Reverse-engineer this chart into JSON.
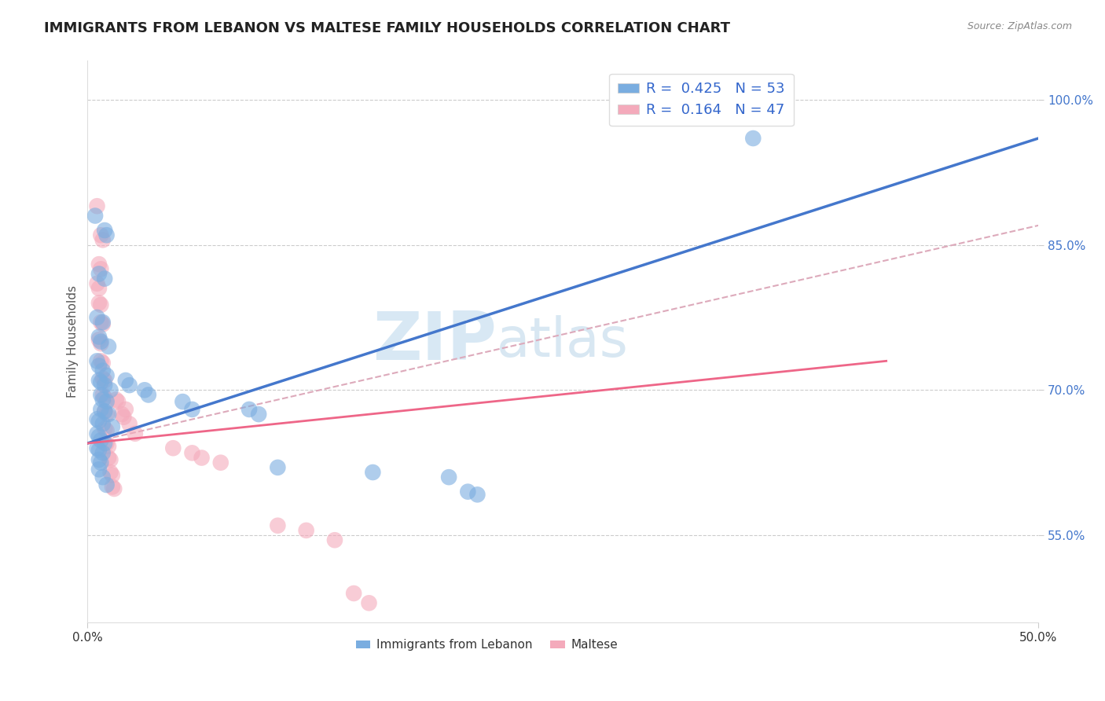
{
  "title": "IMMIGRANTS FROM LEBANON VS MALTESE FAMILY HOUSEHOLDS CORRELATION CHART",
  "source_text": "Source: ZipAtlas.com",
  "ylabel": "Family Households",
  "y_ticks_labels": [
    "55.0%",
    "70.0%",
    "85.0%",
    "100.0%"
  ],
  "y_tick_vals": [
    0.55,
    0.7,
    0.85,
    1.0
  ],
  "x_lim": [
    0.0,
    0.5
  ],
  "y_lim": [
    0.46,
    1.04
  ],
  "legend_label_1": "R =  0.425   N = 53",
  "legend_label_2": "R =  0.164   N = 47",
  "legend_bottom_1": "Immigrants from Lebanon",
  "legend_bottom_2": "Maltese",
  "blue_color": "#7AADE0",
  "pink_color": "#F4AABB",
  "blue_line_color": "#4477CC",
  "pink_line_color": "#EE6688",
  "pink_dashed_color": "#DDAABB",
  "blue_scatter": [
    [
      0.004,
      0.88
    ],
    [
      0.009,
      0.865
    ],
    [
      0.01,
      0.86
    ],
    [
      0.006,
      0.82
    ],
    [
      0.009,
      0.815
    ],
    [
      0.005,
      0.775
    ],
    [
      0.008,
      0.77
    ],
    [
      0.006,
      0.755
    ],
    [
      0.007,
      0.75
    ],
    [
      0.011,
      0.745
    ],
    [
      0.005,
      0.73
    ],
    [
      0.006,
      0.725
    ],
    [
      0.008,
      0.72
    ],
    [
      0.01,
      0.715
    ],
    [
      0.006,
      0.71
    ],
    [
      0.007,
      0.708
    ],
    [
      0.009,
      0.705
    ],
    [
      0.012,
      0.7
    ],
    [
      0.007,
      0.695
    ],
    [
      0.008,
      0.69
    ],
    [
      0.01,
      0.688
    ],
    [
      0.007,
      0.68
    ],
    [
      0.009,
      0.678
    ],
    [
      0.011,
      0.675
    ],
    [
      0.005,
      0.67
    ],
    [
      0.006,
      0.668
    ],
    [
      0.008,
      0.665
    ],
    [
      0.013,
      0.662
    ],
    [
      0.005,
      0.655
    ],
    [
      0.006,
      0.652
    ],
    [
      0.007,
      0.648
    ],
    [
      0.009,
      0.645
    ],
    [
      0.005,
      0.64
    ],
    [
      0.006,
      0.638
    ],
    [
      0.008,
      0.635
    ],
    [
      0.006,
      0.628
    ],
    [
      0.007,
      0.625
    ],
    [
      0.006,
      0.618
    ],
    [
      0.008,
      0.61
    ],
    [
      0.01,
      0.602
    ],
    [
      0.02,
      0.71
    ],
    [
      0.022,
      0.705
    ],
    [
      0.03,
      0.7
    ],
    [
      0.032,
      0.695
    ],
    [
      0.05,
      0.688
    ],
    [
      0.055,
      0.68
    ],
    [
      0.085,
      0.68
    ],
    [
      0.09,
      0.675
    ],
    [
      0.1,
      0.62
    ],
    [
      0.15,
      0.615
    ],
    [
      0.19,
      0.61
    ],
    [
      0.2,
      0.595
    ],
    [
      0.205,
      0.592
    ],
    [
      0.35,
      0.96
    ]
  ],
  "pink_scatter": [
    [
      0.005,
      0.89
    ],
    [
      0.007,
      0.86
    ],
    [
      0.008,
      0.855
    ],
    [
      0.006,
      0.83
    ],
    [
      0.007,
      0.825
    ],
    [
      0.005,
      0.81
    ],
    [
      0.006,
      0.805
    ],
    [
      0.006,
      0.79
    ],
    [
      0.007,
      0.788
    ],
    [
      0.007,
      0.77
    ],
    [
      0.008,
      0.768
    ],
    [
      0.006,
      0.752
    ],
    [
      0.007,
      0.748
    ],
    [
      0.007,
      0.73
    ],
    [
      0.008,
      0.728
    ],
    [
      0.008,
      0.712
    ],
    [
      0.009,
      0.71
    ],
    [
      0.008,
      0.695
    ],
    [
      0.009,
      0.692
    ],
    [
      0.009,
      0.678
    ],
    [
      0.01,
      0.675
    ],
    [
      0.009,
      0.66
    ],
    [
      0.01,
      0.658
    ],
    [
      0.01,
      0.645
    ],
    [
      0.011,
      0.642
    ],
    [
      0.011,
      0.63
    ],
    [
      0.012,
      0.628
    ],
    [
      0.012,
      0.615
    ],
    [
      0.013,
      0.612
    ],
    [
      0.013,
      0.6
    ],
    [
      0.014,
      0.598
    ],
    [
      0.015,
      0.69
    ],
    [
      0.016,
      0.688
    ],
    [
      0.018,
      0.675
    ],
    [
      0.019,
      0.672
    ],
    [
      0.02,
      0.68
    ],
    [
      0.022,
      0.665
    ],
    [
      0.025,
      0.655
    ],
    [
      0.045,
      0.64
    ],
    [
      0.055,
      0.635
    ],
    [
      0.06,
      0.63
    ],
    [
      0.07,
      0.625
    ],
    [
      0.1,
      0.56
    ],
    [
      0.115,
      0.555
    ],
    [
      0.13,
      0.545
    ],
    [
      0.14,
      0.49
    ],
    [
      0.148,
      0.48
    ]
  ],
  "watermark_zip": "ZIP",
  "watermark_atlas": "atlas",
  "title_fontsize": 13,
  "axis_label_fontsize": 11,
  "tick_fontsize": 11,
  "blue_line": {
    "x0": 0.0,
    "y0": 0.645,
    "x1": 0.5,
    "y1": 0.96
  },
  "pink_line": {
    "x0": 0.0,
    "y0": 0.645,
    "x1": 0.42,
    "y1": 0.73
  },
  "pink_dashed_line": {
    "x0": 0.0,
    "y0": 0.645,
    "x1": 0.5,
    "y1": 0.87
  }
}
